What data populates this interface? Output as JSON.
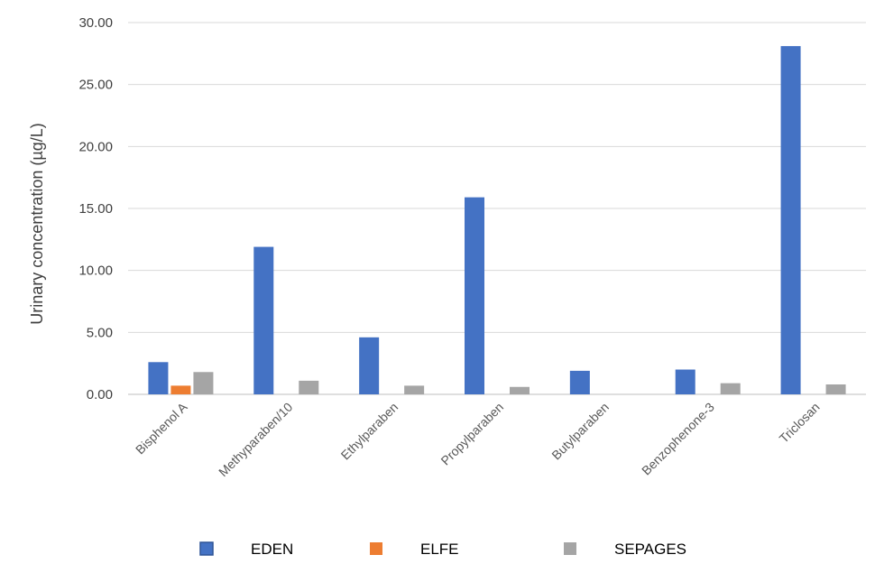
{
  "chart_data": {
    "type": "bar",
    "categories": [
      "Bisphenol A",
      "Methyparaben/10",
      "Ethylparaben",
      "Propylparaben",
      "Butylparaben",
      "Benzophenone-3",
      "Triclosan"
    ],
    "series": [
      {
        "name": "EDEN",
        "color": "#4472C4",
        "values": [
          2.6,
          11.9,
          4.6,
          15.9,
          1.9,
          2.0,
          28.1
        ]
      },
      {
        "name": "ELFE",
        "color": "#ED7D31",
        "values": [
          0.7,
          null,
          null,
          null,
          null,
          null,
          null
        ]
      },
      {
        "name": "SEPAGES",
        "color": "#A5A5A5",
        "values": [
          1.8,
          1.1,
          0.7,
          0.6,
          null,
          0.9,
          0.8
        ]
      }
    ],
    "ylabel": "Urinary concentration (µg/L)",
    "xlabel": "",
    "ylim": [
      0,
      30
    ],
    "yticks": [
      "0.00",
      "5.00",
      "10.00",
      "15.00",
      "20.00",
      "25.00",
      "30.00"
    ],
    "grid": true,
    "legend_position": "bottom"
  }
}
